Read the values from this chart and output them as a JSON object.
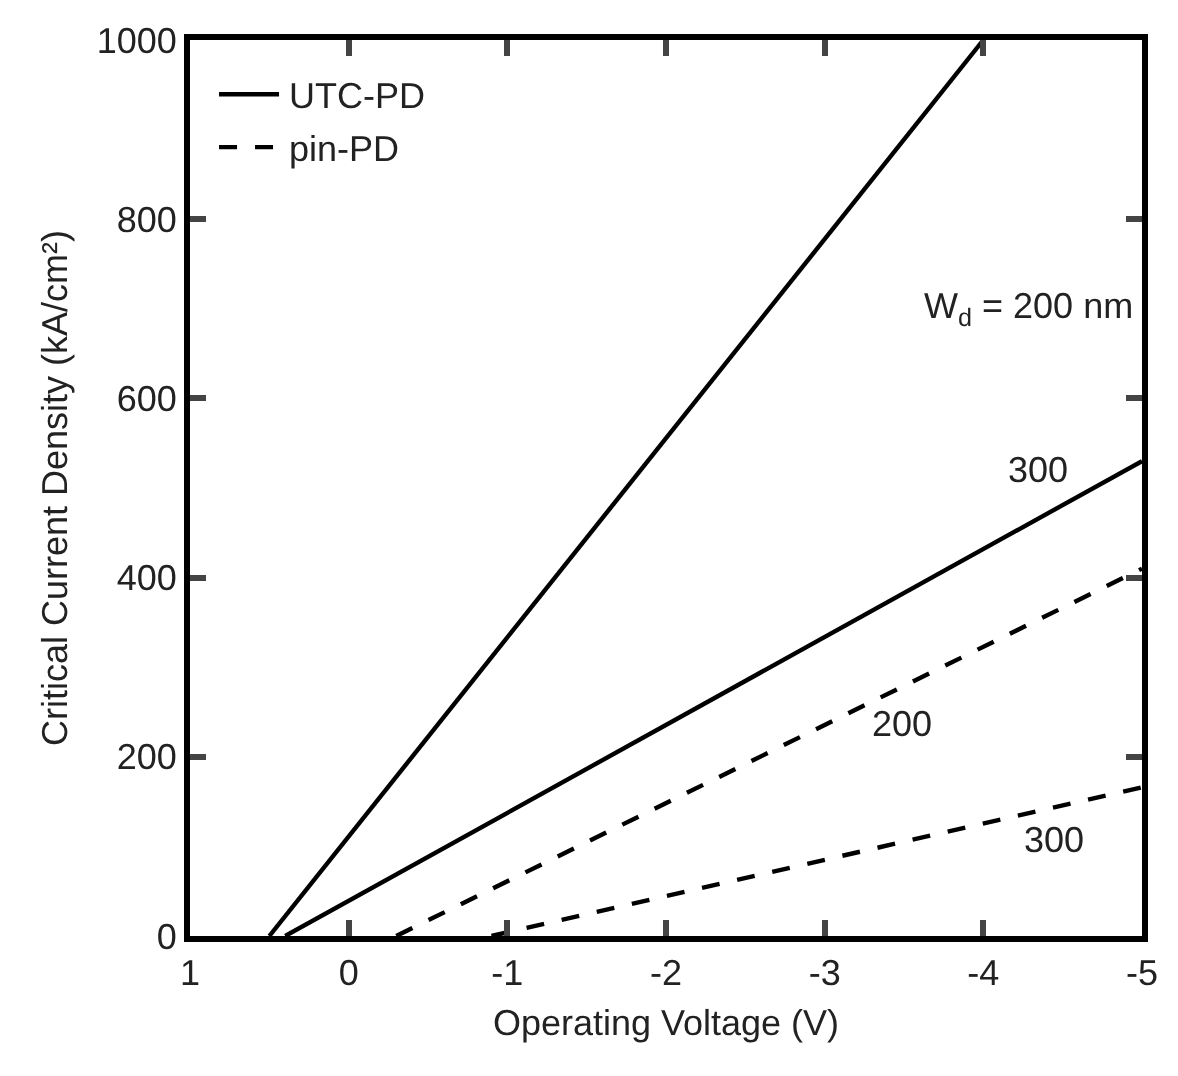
{
  "chart_data": {
    "type": "line",
    "xlabel": "Operating Voltage (V)",
    "ylabel": "Critical Current Density (kA/cm²)",
    "xlim": [
      1,
      -5
    ],
    "xticks": [
      1,
      0,
      -1,
      -2,
      -3,
      -4,
      -5
    ],
    "ylim": [
      0,
      1000
    ],
    "yticks": [
      0,
      200,
      400,
      600,
      800,
      1000
    ],
    "grid": false,
    "legend": "top left",
    "marker": "none",
    "series": [
      {
        "name": "UTC-PD",
        "color": "#000000",
        "line_style": "solid",
        "x": [
          0.5,
          -4
        ],
        "values": [
          0,
          1000
        ]
      },
      {
        "color": "#000000",
        "line_style": "solid",
        "x": [
          0.4,
          -5
        ],
        "values": [
          0,
          530
        ]
      },
      {
        "name": "pin-PD",
        "color": "#000000",
        "line_style": "dashed",
        "x": [
          -0.3,
          -5
        ],
        "values": [
          0,
          410
        ]
      },
      {
        "color": "#000000",
        "line_style": "dashed",
        "x": [
          -0.9,
          -5
        ],
        "values": [
          0,
          166
        ]
      }
    ],
    "annotations": [
      "W$_{d}$ = 200 nm",
      {
        "text": "300",
        "x": -4.34,
        "y": 520
      },
      {
        "text": "200",
        "x": -3.49,
        "y": 236
      },
      {
        "text": "300",
        "x": -4.44,
        "y": 107
      }
    ]
  }
}
